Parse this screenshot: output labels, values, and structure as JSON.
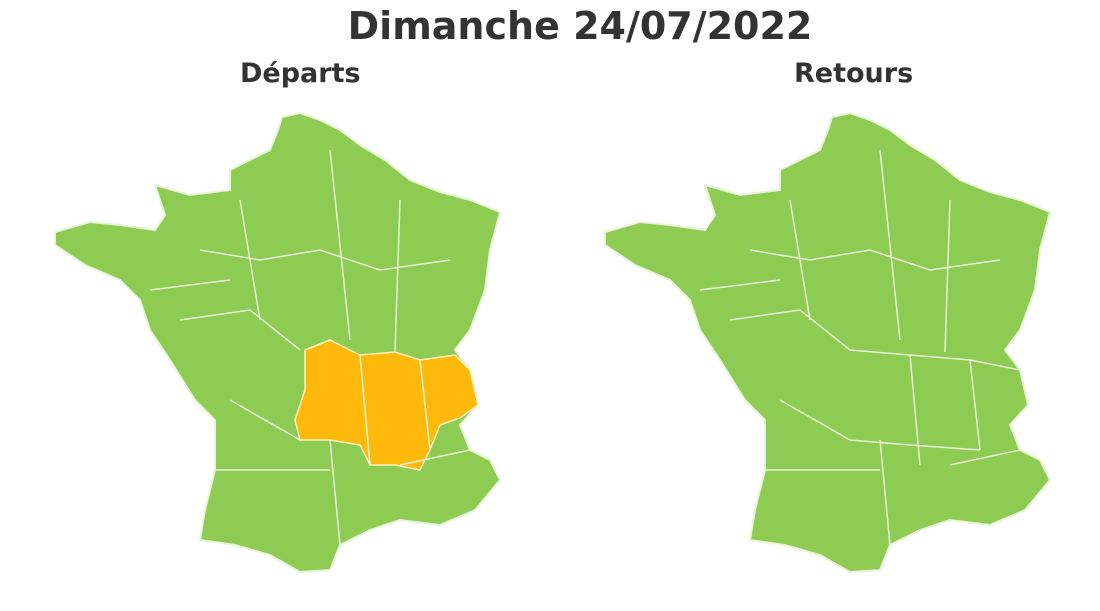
{
  "title": "Dimanche 24/07/2022",
  "maps": [
    {
      "label": "Départs",
      "base_status": "vert",
      "highlighted_status": "orange",
      "highlighted_area": "Auvergne-Rhône-Alpes"
    },
    {
      "label": "Retours",
      "base_status": "vert"
    }
  ],
  "colors": {
    "vert": "#8dcb52",
    "orange": "#ffb90a",
    "borders": "#e8f5d8",
    "text": "#333333"
  }
}
